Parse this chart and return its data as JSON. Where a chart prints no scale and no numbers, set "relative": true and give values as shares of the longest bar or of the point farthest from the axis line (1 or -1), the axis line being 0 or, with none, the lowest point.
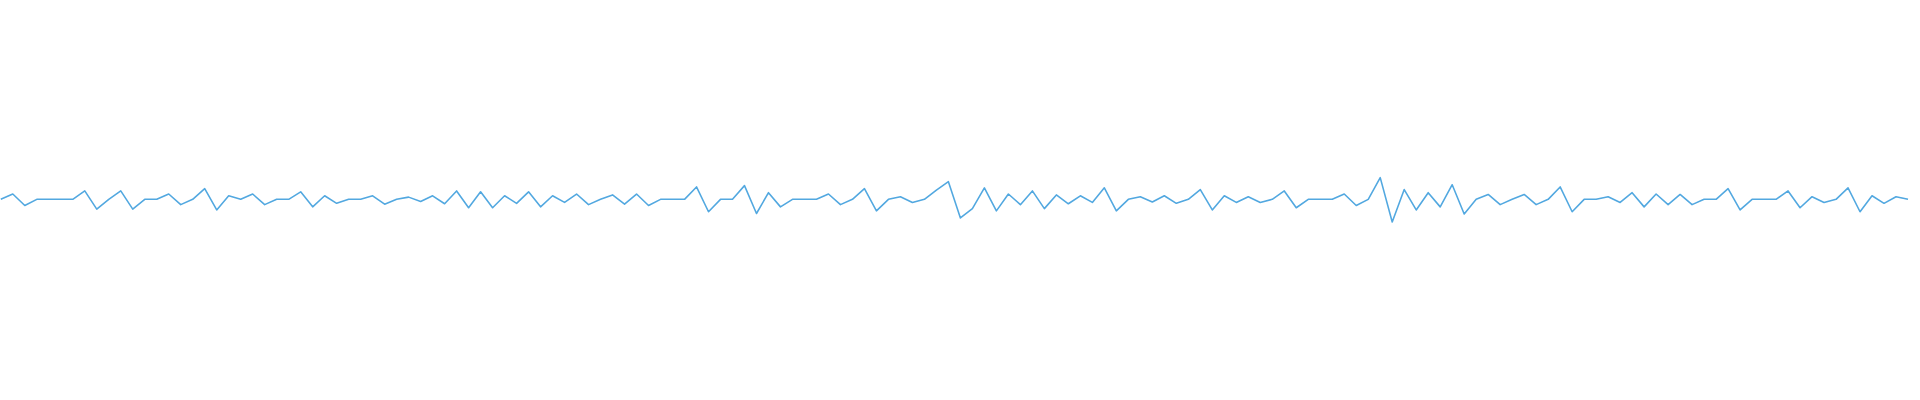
{
  "chart_data": {
    "type": "line",
    "relative": true,
    "color": "#52a8e0",
    "categories": [
      null,
      null,
      null,
      null,
      null,
      null,
      null,
      null,
      null,
      null,
      null,
      null,
      null,
      null,
      null,
      null,
      null,
      null,
      null,
      null,
      null,
      null,
      null,
      null,
      null,
      null,
      null,
      null,
      null,
      null,
      null,
      null,
      null,
      null,
      null,
      null,
      null,
      null,
      null,
      null,
      null,
      null,
      null,
      null,
      null,
      null,
      null,
      null,
      null,
      null,
      null,
      null,
      null,
      null,
      null,
      null,
      null,
      null,
      null,
      null,
      null,
      null,
      null,
      null,
      null,
      null,
      null,
      null,
      null,
      null,
      null,
      null,
      null,
      null,
      null,
      null,
      null,
      null,
      null,
      null,
      null,
      null,
      null,
      null,
      null,
      null,
      null,
      null,
      null,
      null,
      null,
      null,
      null,
      null,
      null,
      null,
      null,
      null,
      null,
      null,
      null,
      null,
      null,
      null,
      null,
      null,
      null,
      null,
      null,
      null,
      null,
      null,
      null,
      null,
      null,
      null,
      null,
      null,
      null,
      null,
      null,
      null,
      null,
      null,
      null,
      null,
      null,
      null,
      null,
      null,
      null,
      null,
      null,
      null,
      null,
      null,
      null,
      null,
      null,
      null,
      null,
      null,
      null,
      null,
      null,
      null,
      null,
      null,
      null,
      null,
      null,
      null,
      null,
      null,
      null,
      null,
      null,
      null,
      null,
      null
    ],
    "values": [
      0.51,
      0.63,
      0.37,
      0.51,
      0.51,
      0.51,
      0.51,
      0.7,
      0.29,
      0.51,
      0.7,
      0.29,
      0.51,
      0.51,
      0.63,
      0.39,
      0.51,
      0.75,
      0.27,
      0.59,
      0.51,
      0.63,
      0.39,
      0.51,
      0.51,
      0.68,
      0.34,
      0.59,
      0.42,
      0.51,
      0.51,
      0.59,
      0.4,
      0.51,
      0.56,
      0.46,
      0.59,
      0.41,
      0.7,
      0.32,
      0.68,
      0.32,
      0.59,
      0.42,
      0.68,
      0.34,
      0.59,
      0.44,
      0.63,
      0.39,
      0.51,
      0.61,
      0.4,
      0.63,
      0.37,
      0.51,
      0.51,
      0.51,
      0.79,
      0.23,
      0.51,
      0.51,
      0.82,
      0.19,
      0.66,
      0.34,
      0.51,
      0.51,
      0.51,
      0.63,
      0.39,
      0.51,
      0.75,
      0.25,
      0.51,
      0.57,
      0.44,
      0.51,
      0.72,
      0.91,
      0.09,
      0.3,
      0.77,
      0.25,
      0.63,
      0.39,
      0.7,
      0.3,
      0.61,
      0.41,
      0.59,
      0.44,
      0.77,
      0.25,
      0.51,
      0.57,
      0.45,
      0.59,
      0.42,
      0.51,
      0.73,
      0.27,
      0.59,
      0.44,
      0.57,
      0.44,
      0.51,
      0.7,
      0.32,
      0.51,
      0.51,
      0.51,
      0.63,
      0.37,
      0.51,
      1,
      0,
      0.73,
      0.27,
      0.66,
      0.34,
      0.84,
      0.18,
      0.51,
      0.62,
      0.39,
      0.51,
      0.62,
      0.39,
      0.51,
      0.79,
      0.23,
      0.51,
      0.51,
      0.57,
      0.44,
      0.66,
      0.34,
      0.63,
      0.39,
      0.62,
      0.39,
      0.51,
      0.51,
      0.75,
      0.27,
      0.51,
      0.51,
      0.51,
      0.7,
      0.32,
      0.57,
      0.44,
      0.51,
      0.77,
      0.23,
      0.59,
      0.42,
      0.57,
      0.51
    ]
  }
}
